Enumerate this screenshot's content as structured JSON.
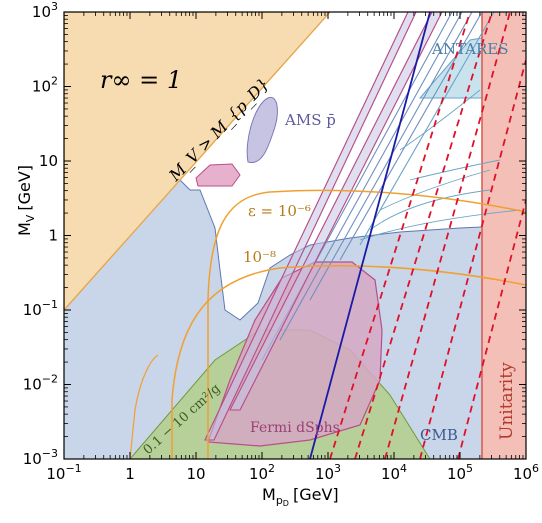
{
  "chart_data": {
    "type": "contour",
    "title": "",
    "xlabel": "M_{p_D} [GeV]",
    "ylabel": "M_V [GeV]",
    "x_scale": "log",
    "y_scale": "log",
    "xlim": [
      0.1,
      1000000
    ],
    "ylim": [
      0.001,
      1000
    ],
    "x_ticks": [
      {
        "value": 0.1,
        "base": "10",
        "exp": "−1"
      },
      {
        "value": 1,
        "label": "1"
      },
      {
        "value": 10,
        "label": "10"
      },
      {
        "value": 100,
        "base": "10",
        "exp": "2"
      },
      {
        "value": 1000,
        "base": "10",
        "exp": "3"
      },
      {
        "value": 10000,
        "base": "10",
        "exp": "4"
      },
      {
        "value": 100000,
        "base": "10",
        "exp": "5"
      },
      {
        "value": 1000000,
        "base": "10",
        "exp": "6"
      }
    ],
    "y_ticks": [
      {
        "value": 0.001,
        "base": "10",
        "exp": "−3"
      },
      {
        "value": 0.01,
        "base": "10",
        "exp": "−2"
      },
      {
        "value": 0.1,
        "base": "10",
        "exp": "−1"
      },
      {
        "value": 1,
        "label": "1"
      },
      {
        "value": 10,
        "label": "10"
      },
      {
        "value": 100,
        "base": "10",
        "exp": "2"
      },
      {
        "value": 1000,
        "base": "10",
        "exp": "3"
      }
    ],
    "regions": [
      {
        "name": "CMB",
        "color": "#c9d5e8"
      },
      {
        "name": "M_V > M_{p_D}",
        "color": "#f6dcb0"
      },
      {
        "name": "Unitarity",
        "color": "#f4bfb6",
        "x_min": 200000
      },
      {
        "name": "AMS p̄",
        "color": "#c7c4e3"
      },
      {
        "name": "ANTARES",
        "color": "#c9e3ee"
      },
      {
        "name": "Fermi dSphs",
        "color": "#d6a8c4"
      },
      {
        "name": "0.1 − 10 cm²/g",
        "color": "#b7cf98"
      }
    ],
    "curves": [
      {
        "name": "ε = 10^{-6}",
        "color": "#f0a030"
      },
      {
        "name": "10^{-8}",
        "color": "#f0a030"
      },
      {
        "name": "relic (blue)",
        "color": "#1a1aa6"
      },
      {
        "name": "red dashed",
        "color": "#e0102a"
      }
    ]
  },
  "labels": {
    "r_inf": "r∞ = 1",
    "mv_gt": "M_V > M_{p_D}",
    "ams": "AMS p̄",
    "eps6": "ε = 10⁻⁶",
    "eps8": "10⁻⁸",
    "antares": "ANTARES",
    "cmb": "CMB",
    "unitarity": "Unitarity",
    "fermi": "Fermi dSphs",
    "sidm": "0.1 − 10 cm²/g"
  }
}
